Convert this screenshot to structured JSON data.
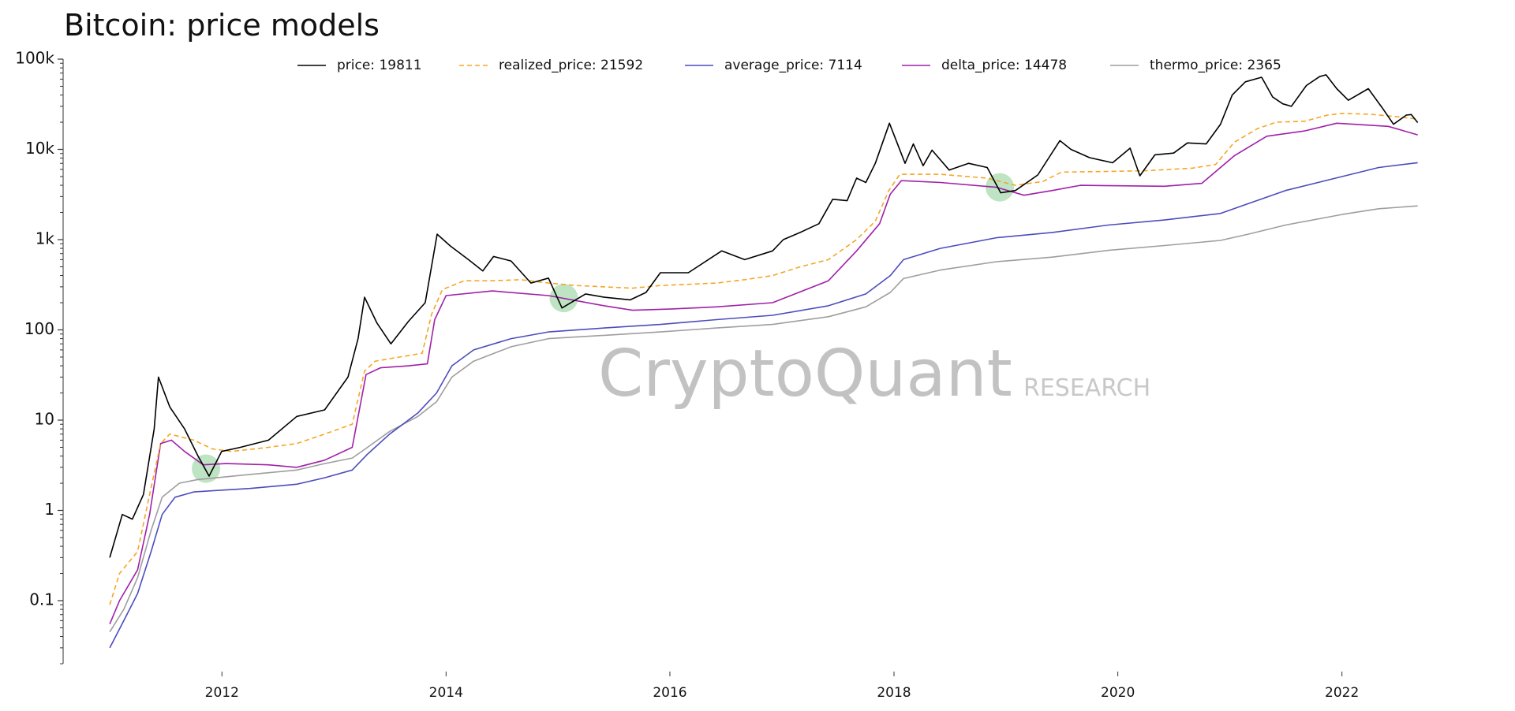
{
  "chart_data": {
    "type": "line",
    "title": "Bitcoin: price models",
    "xlabel": "",
    "ylabel": "",
    "yscale": "log",
    "ylim": [
      0.02,
      100000
    ],
    "xlim": [
      "2010-08-01",
      "2023-02-15"
    ],
    "grid": false,
    "legend_position": "top",
    "y_ticks": [
      {
        "value": 100000,
        "label": "100k"
      },
      {
        "value": 10000,
        "label": "10k"
      },
      {
        "value": 1000,
        "label": "1k"
      },
      {
        "value": 100,
        "label": "100"
      },
      {
        "value": 10,
        "label": "10"
      },
      {
        "value": 1,
        "label": "1"
      },
      {
        "value": 0.1,
        "label": "0.1"
      }
    ],
    "x_ticks": [
      "2012",
      "2014",
      "2016",
      "2018",
      "2020",
      "2022"
    ],
    "series": [
      {
        "name": "price: 19811",
        "color": "#000000",
        "dash": "solid",
        "points": [
          [
            "2010-12-31",
            0.3
          ],
          [
            "2011-02-10",
            0.9
          ],
          [
            "2011-03-15",
            0.8
          ],
          [
            "2011-04-20",
            1.5
          ],
          [
            "2011-05-25",
            8
          ],
          [
            "2011-06-08",
            30
          ],
          [
            "2011-07-15",
            14
          ],
          [
            "2011-09-01",
            8
          ],
          [
            "2011-10-15",
            4
          ],
          [
            "2011-11-20",
            2.4
          ],
          [
            "2011-12-31",
            4.5
          ],
          [
            "2012-03-01",
            5
          ],
          [
            "2012-06-01",
            6
          ],
          [
            "2012-09-01",
            11
          ],
          [
            "2012-12-01",
            13
          ],
          [
            "2013-02-15",
            30
          ],
          [
            "2013-03-20",
            80
          ],
          [
            "2013-04-10",
            230
          ],
          [
            "2013-05-20",
            120
          ],
          [
            "2013-07-05",
            70
          ],
          [
            "2013-09-01",
            125
          ],
          [
            "2013-10-25",
            200
          ],
          [
            "2013-12-03",
            1150
          ],
          [
            "2014-01-15",
            850
          ],
          [
            "2014-03-15",
            600
          ],
          [
            "2014-05-01",
            450
          ],
          [
            "2014-06-05",
            650
          ],
          [
            "2014-08-01",
            580
          ],
          [
            "2014-10-05",
            330
          ],
          [
            "2014-12-01",
            375
          ],
          [
            "2015-01-14",
            175
          ],
          [
            "2015-04-01",
            250
          ],
          [
            "2015-06-01",
            230
          ],
          [
            "2015-08-25",
            215
          ],
          [
            "2015-10-15",
            260
          ],
          [
            "2015-12-01",
            430
          ],
          [
            "2016-03-01",
            430
          ],
          [
            "2016-06-18",
            750
          ],
          [
            "2016-09-01",
            600
          ],
          [
            "2016-12-01",
            750
          ],
          [
            "2017-01-05",
            1000
          ],
          [
            "2017-03-01",
            1200
          ],
          [
            "2017-05-01",
            1500
          ],
          [
            "2017-06-15",
            2800
          ],
          [
            "2017-08-01",
            2700
          ],
          [
            "2017-09-01",
            4800
          ],
          [
            "2017-10-01",
            4300
          ],
          [
            "2017-11-01",
            7000
          ],
          [
            "2017-12-17",
            19500
          ],
          [
            "2018-02-06",
            7000
          ],
          [
            "2018-03-05",
            11500
          ],
          [
            "2018-04-06",
            6600
          ],
          [
            "2018-05-05",
            9800
          ],
          [
            "2018-06-30",
            5900
          ],
          [
            "2018-09-01",
            7000
          ],
          [
            "2018-11-01",
            6300
          ],
          [
            "2018-12-15",
            3300
          ],
          [
            "2019-02-01",
            3500
          ],
          [
            "2019-04-15",
            5200
          ],
          [
            "2019-06-26",
            12500
          ],
          [
            "2019-08-01",
            10000
          ],
          [
            "2019-10-01",
            8100
          ],
          [
            "2019-12-15",
            7100
          ],
          [
            "2020-02-10",
            10300
          ],
          [
            "2020-03-13",
            5100
          ],
          [
            "2020-05-01",
            8700
          ],
          [
            "2020-07-01",
            9100
          ],
          [
            "2020-08-15",
            11800
          ],
          [
            "2020-10-15",
            11500
          ],
          [
            "2020-12-01",
            19000
          ],
          [
            "2021-01-08",
            40000
          ],
          [
            "2021-02-20",
            56000
          ],
          [
            "2021-04-14",
            63000
          ],
          [
            "2021-05-20",
            38000
          ],
          [
            "2021-06-22",
            32000
          ],
          [
            "2021-07-20",
            30000
          ],
          [
            "2021-09-07",
            51000
          ],
          [
            "2021-10-20",
            64000
          ],
          [
            "2021-11-10",
            67000
          ],
          [
            "2021-12-15",
            47000
          ],
          [
            "2022-01-22",
            35000
          ],
          [
            "2022-03-28",
            47000
          ],
          [
            "2022-05-12",
            29000
          ],
          [
            "2022-06-18",
            19000
          ],
          [
            "2022-07-30",
            24000
          ],
          [
            "2022-08-15",
            24300
          ],
          [
            "2022-09-05",
            19811
          ]
        ]
      },
      {
        "name": "realized_price: 21592",
        "color": "#f5a623",
        "dash": "dashed",
        "points": [
          [
            "2010-12-31",
            0.09
          ],
          [
            "2011-02-01",
            0.2
          ],
          [
            "2011-04-01",
            0.35
          ],
          [
            "2011-05-10",
            1.5
          ],
          [
            "2011-06-15",
            5.5
          ],
          [
            "2011-07-15",
            7
          ],
          [
            "2011-10-01",
            6
          ],
          [
            "2011-12-01",
            4.8
          ],
          [
            "2012-02-01",
            4.5
          ],
          [
            "2012-06-01",
            5
          ],
          [
            "2012-09-01",
            5.5
          ],
          [
            "2012-12-01",
            7
          ],
          [
            "2013-03-01",
            9
          ],
          [
            "2013-04-10",
            35
          ],
          [
            "2013-05-15",
            45
          ],
          [
            "2013-08-01",
            50
          ],
          [
            "2013-10-15",
            55
          ],
          [
            "2013-11-15",
            150
          ],
          [
            "2013-12-20",
            280
          ],
          [
            "2014-03-01",
            350
          ],
          [
            "2014-06-01",
            350
          ],
          [
            "2014-09-01",
            360
          ],
          [
            "2014-12-01",
            330
          ],
          [
            "2015-03-01",
            310
          ],
          [
            "2015-06-01",
            300
          ],
          [
            "2015-09-01",
            290
          ],
          [
            "2015-12-01",
            310
          ],
          [
            "2016-03-01",
            320
          ],
          [
            "2016-06-01",
            330
          ],
          [
            "2016-09-01",
            360
          ],
          [
            "2016-12-01",
            400
          ],
          [
            "2017-03-01",
            500
          ],
          [
            "2017-06-01",
            600
          ],
          [
            "2017-09-01",
            1000
          ],
          [
            "2017-11-01",
            1600
          ],
          [
            "2017-12-15",
            3500
          ],
          [
            "2018-01-20",
            5300
          ],
          [
            "2018-06-01",
            5300
          ],
          [
            "2018-11-01",
            4800
          ],
          [
            "2019-02-01",
            4000
          ],
          [
            "2019-05-01",
            4400
          ],
          [
            "2019-07-01",
            5600
          ],
          [
            "2019-12-01",
            5700
          ],
          [
            "2020-04-01",
            5800
          ],
          [
            "2020-09-01",
            6200
          ],
          [
            "2020-11-15",
            6800
          ],
          [
            "2021-01-15",
            12000
          ],
          [
            "2021-04-01",
            17000
          ],
          [
            "2021-06-01",
            20000
          ],
          [
            "2021-09-01",
            20500
          ],
          [
            "2021-11-15",
            24000
          ],
          [
            "2022-01-01",
            25000
          ],
          [
            "2022-04-01",
            24500
          ],
          [
            "2022-07-01",
            23000
          ],
          [
            "2022-09-05",
            21592
          ]
        ]
      },
      {
        "name": "average_price: 7114",
        "color": "#4c4cbd",
        "dash": "solid",
        "points": [
          [
            "2010-12-31",
            0.03
          ],
          [
            "2011-02-15",
            0.06
          ],
          [
            "2011-04-01",
            0.12
          ],
          [
            "2011-05-15",
            0.35
          ],
          [
            "2011-06-20",
            0.9
          ],
          [
            "2011-08-01",
            1.4
          ],
          [
            "2011-10-01",
            1.6
          ],
          [
            "2011-12-01",
            1.65
          ],
          [
            "2012-04-01",
            1.75
          ],
          [
            "2012-09-01",
            1.95
          ],
          [
            "2012-12-01",
            2.3
          ],
          [
            "2013-03-01",
            2.8
          ],
          [
            "2013-04-20",
            4.2
          ],
          [
            "2013-07-01",
            7
          ],
          [
            "2013-10-01",
            12
          ],
          [
            "2013-12-01",
            20
          ],
          [
            "2014-01-20",
            40
          ],
          [
            "2014-04-01",
            60
          ],
          [
            "2014-08-01",
            80
          ],
          [
            "2014-12-01",
            95
          ],
          [
            "2015-06-01",
            105
          ],
          [
            "2015-12-01",
            115
          ],
          [
            "2016-06-01",
            130
          ],
          [
            "2016-12-01",
            145
          ],
          [
            "2017-06-01",
            185
          ],
          [
            "2017-10-01",
            250
          ],
          [
            "2017-12-20",
            400
          ],
          [
            "2018-02-01",
            600
          ],
          [
            "2018-06-01",
            800
          ],
          [
            "2018-12-01",
            1050
          ],
          [
            "2019-06-01",
            1200
          ],
          [
            "2019-12-01",
            1450
          ],
          [
            "2020-06-01",
            1650
          ],
          [
            "2020-12-01",
            1950
          ],
          [
            "2021-03-01",
            2500
          ],
          [
            "2021-07-01",
            3500
          ],
          [
            "2022-01-01",
            5000
          ],
          [
            "2022-05-01",
            6300
          ],
          [
            "2022-09-05",
            7114
          ]
        ]
      },
      {
        "name": "delta_price: 14478",
        "color": "#a020a8",
        "dash": "solid",
        "points": [
          [
            "2010-12-31",
            0.055
          ],
          [
            "2011-02-01",
            0.1
          ],
          [
            "2011-04-01",
            0.22
          ],
          [
            "2011-05-10",
            0.9
          ],
          [
            "2011-06-15",
            5.5
          ],
          [
            "2011-07-20",
            6
          ],
          [
            "2011-09-01",
            4.5
          ],
          [
            "2011-11-01",
            3.2
          ],
          [
            "2012-01-15",
            3.3
          ],
          [
            "2012-06-01",
            3.2
          ],
          [
            "2012-09-01",
            3
          ],
          [
            "2012-12-01",
            3.6
          ],
          [
            "2013-03-01",
            5
          ],
          [
            "2013-04-15",
            32
          ],
          [
            "2013-06-01",
            38
          ],
          [
            "2013-09-01",
            40
          ],
          [
            "2013-11-01",
            42
          ],
          [
            "2013-11-25",
            130
          ],
          [
            "2014-01-01",
            240
          ],
          [
            "2014-06-01",
            270
          ],
          [
            "2014-12-01",
            240
          ],
          [
            "2015-06-01",
            185
          ],
          [
            "2015-09-01",
            165
          ],
          [
            "2016-01-01",
            170
          ],
          [
            "2016-06-01",
            180
          ],
          [
            "2016-12-01",
            200
          ],
          [
            "2017-06-01",
            350
          ],
          [
            "2017-09-01",
            750
          ],
          [
            "2017-11-15",
            1500
          ],
          [
            "2017-12-20",
            3200
          ],
          [
            "2018-01-25",
            4500
          ],
          [
            "2018-06-01",
            4300
          ],
          [
            "2018-12-01",
            3800
          ],
          [
            "2019-03-01",
            3100
          ],
          [
            "2019-06-01",
            3500
          ],
          [
            "2019-09-01",
            4000
          ],
          [
            "2020-06-01",
            3900
          ],
          [
            "2020-10-01",
            4200
          ],
          [
            "2021-01-15",
            8500
          ],
          [
            "2021-05-01",
            14000
          ],
          [
            "2021-09-01",
            16000
          ],
          [
            "2021-12-15",
            19500
          ],
          [
            "2022-06-01",
            18000
          ],
          [
            "2022-09-05",
            14478
          ]
        ]
      },
      {
        "name": "thermo_price: 2365",
        "color": "#9e9e9e",
        "dash": "solid",
        "points": [
          [
            "2010-12-31",
            0.045
          ],
          [
            "2011-02-15",
            0.08
          ],
          [
            "2011-04-01",
            0.18
          ],
          [
            "2011-05-15",
            0.6
          ],
          [
            "2011-06-20",
            1.4
          ],
          [
            "2011-08-15",
            2
          ],
          [
            "2011-10-15",
            2.2
          ],
          [
            "2011-12-15",
            2.3
          ],
          [
            "2012-04-01",
            2.5
          ],
          [
            "2012-09-01",
            2.8
          ],
          [
            "2012-12-01",
            3.3
          ],
          [
            "2013-03-01",
            3.8
          ],
          [
            "2013-04-20",
            5
          ],
          [
            "2013-07-01",
            7.5
          ],
          [
            "2013-10-01",
            11
          ],
          [
            "2013-12-01",
            16
          ],
          [
            "2014-01-20",
            30
          ],
          [
            "2014-04-01",
            45
          ],
          [
            "2014-08-01",
            65
          ],
          [
            "2014-12-01",
            80
          ],
          [
            "2015-06-01",
            87
          ],
          [
            "2015-12-01",
            95
          ],
          [
            "2016-06-01",
            105
          ],
          [
            "2016-12-01",
            115
          ],
          [
            "2017-06-01",
            140
          ],
          [
            "2017-10-01",
            180
          ],
          [
            "2017-12-20",
            260
          ],
          [
            "2018-02-01",
            370
          ],
          [
            "2018-06-01",
            460
          ],
          [
            "2018-12-01",
            570
          ],
          [
            "2019-06-01",
            640
          ],
          [
            "2019-12-01",
            760
          ],
          [
            "2020-06-01",
            860
          ],
          [
            "2020-12-01",
            980
          ],
          [
            "2021-03-01",
            1150
          ],
          [
            "2021-07-01",
            1450
          ],
          [
            "2022-01-01",
            1900
          ],
          [
            "2022-05-01",
            2200
          ],
          [
            "2022-09-05",
            2365
          ]
        ]
      }
    ],
    "highlights": [
      {
        "date": "2011-11-10",
        "value": 2.9,
        "color": "#6fc47b"
      },
      {
        "date": "2015-01-20",
        "value": 225,
        "color": "#6fc47b"
      },
      {
        "date": "2018-12-12",
        "value": 3800,
        "color": "#6fc47b"
      }
    ]
  },
  "watermark": {
    "main": "CryptoQuant",
    "sub": "RESEARCH"
  }
}
